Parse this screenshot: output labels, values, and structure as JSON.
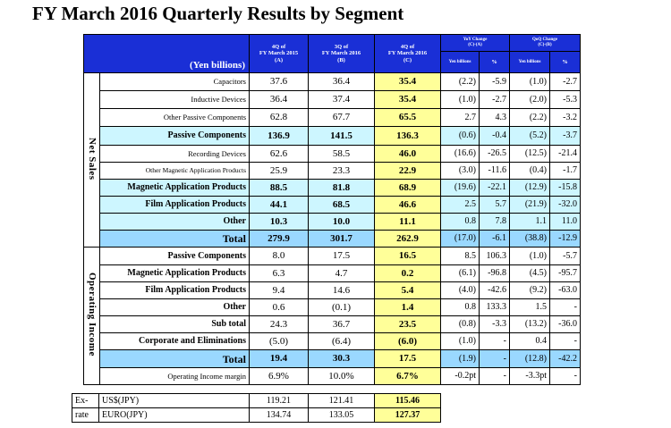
{
  "title": "FY March 2016 Quarterly Results by Segment",
  "unit_label": "(Yen billions)",
  "headers": {
    "c1": [
      "4Q of",
      "FY March 2015",
      "(A)"
    ],
    "c2": [
      "3Q of",
      "FY March 2016",
      "(B)"
    ],
    "c3": [
      "4Q of",
      "FY March 2016",
      "(C)"
    ],
    "yoy": [
      "YoY Change",
      "(C)-(A)"
    ],
    "qoq": [
      "QoQ Change",
      "(C)-(B)"
    ],
    "yen": "Yen billions",
    "pct": "%"
  },
  "sections": {
    "net_sales": "Net Sales",
    "operating_income": "Operating Income"
  },
  "rows": [
    {
      "label": "Capacitors",
      "a": "37.6",
      "b": "36.4",
      "c": "35.4",
      "yy": "(2.2)",
      "yp": "-5.9",
      "qy": "(1.0)",
      "qp": "-2.7"
    },
    {
      "label": "Inductive Devices",
      "a": "36.4",
      "b": "37.4",
      "c": "35.4",
      "yy": "(1.0)",
      "yp": "-2.7",
      "qy": "(2.0)",
      "qp": "-5.3"
    },
    {
      "label": "Other Passive Components",
      "a": "62.8",
      "b": "67.7",
      "c": "65.5",
      "yy": "2.7",
      "yp": "4.3",
      "qy": "(2.2)",
      "qp": "-3.2"
    },
    {
      "label": "Passive Components",
      "a": "136.9",
      "b": "141.5",
      "c": "136.3",
      "yy": "(0.6)",
      "yp": "-0.4",
      "qy": "(5.2)",
      "qp": "-3.7"
    },
    {
      "label": "Recording Devices",
      "a": "62.6",
      "b": "58.5",
      "c": "46.0",
      "yy": "(16.6)",
      "yp": "-26.5",
      "qy": "(12.5)",
      "qp": "-21.4"
    },
    {
      "label": "Other Magnetic Application Products",
      "a": "25.9",
      "b": "23.3",
      "c": "22.9",
      "yy": "(3.0)",
      "yp": "-11.6",
      "qy": "(0.4)",
      "qp": "-1.7"
    },
    {
      "label": "Magnetic Application Products",
      "a": "88.5",
      "b": "81.8",
      "c": "68.9",
      "yy": "(19.6)",
      "yp": "-22.1",
      "qy": "(12.9)",
      "qp": "-15.8"
    },
    {
      "label": "Film Application Products",
      "a": "44.1",
      "b": "68.5",
      "c": "46.6",
      "yy": "2.5",
      "yp": "5.7",
      "qy": "(21.9)",
      "qp": "-32.0"
    },
    {
      "label": "Other",
      "a": "10.3",
      "b": "10.0",
      "c": "11.1",
      "yy": "0.8",
      "yp": "7.8",
      "qy": "1.1",
      "qp": "11.0"
    },
    {
      "label": "Total",
      "a": "279.9",
      "b": "301.7",
      "c": "262.9",
      "yy": "(17.0)",
      "yp": "-6.1",
      "qy": "(38.8)",
      "qp": "-12.9"
    },
    {
      "label": "Passive Components",
      "a": "8.0",
      "b": "17.5",
      "c": "16.5",
      "yy": "8.5",
      "yp": "106.3",
      "qy": "(1.0)",
      "qp": "-5.7"
    },
    {
      "label": "Magnetic Application Products",
      "a": "6.3",
      "b": "4.7",
      "c": "0.2",
      "yy": "(6.1)",
      "yp": "-96.8",
      "qy": "(4.5)",
      "qp": "-95.7"
    },
    {
      "label": "Film Application Products",
      "a": "9.4",
      "b": "14.6",
      "c": "5.4",
      "yy": "(4.0)",
      "yp": "-42.6",
      "qy": "(9.2)",
      "qp": "-63.0"
    },
    {
      "label": "Other",
      "a": "0.6",
      "b": "(0.1)",
      "c": "1.4",
      "yy": "0.8",
      "yp": "133.3",
      "qy": "1.5",
      "qp": "-"
    },
    {
      "label": "Sub total",
      "a": "24.3",
      "b": "36.7",
      "c": "23.5",
      "yy": "(0.8)",
      "yp": "-3.3",
      "qy": "(13.2)",
      "qp": "-36.0"
    },
    {
      "label": "Corporate and Eliminations",
      "a": "(5.0)",
      "b": "(6.4)",
      "c": "(6.0)",
      "yy": "(1.0)",
      "yp": "-",
      "qy": "0.4",
      "qp": "-"
    },
    {
      "label": "Total",
      "a": "19.4",
      "b": "30.3",
      "c": "17.5",
      "yy": "(1.9)",
      "yp": "-",
      "qy": "(12.8)",
      "qp": "-42.2"
    },
    {
      "label": "Operating Income margin",
      "a": "6.9%",
      "b": "10.0%",
      "c": "6.7%",
      "yy": "-0.2pt",
      "yp": "-",
      "qy": "-3.3pt",
      "qp": "-"
    }
  ],
  "fx": {
    "label1": "Ex-",
    "label2": "rate",
    "usd": {
      "name": "US$(JPY)",
      "a": "119.21",
      "b": "121.41",
      "c": "115.46"
    },
    "eur": {
      "name": "EURO(JPY)",
      "a": "134.74",
      "b": "133.05",
      "c": "127.37"
    }
  }
}
